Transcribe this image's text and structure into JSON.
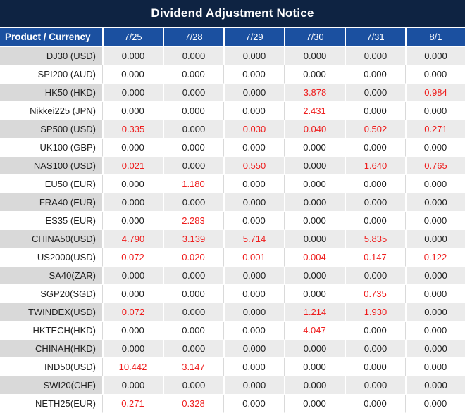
{
  "title": "Dividend Adjustment Notice",
  "table": {
    "product_header": "Product / Currency",
    "date_headers": [
      "7/25",
      "7/28",
      "7/29",
      "7/30",
      "7/31",
      "8/1"
    ],
    "rows": [
      {
        "product": "DJ30 (USD)",
        "values": [
          "0.000",
          "0.000",
          "0.000",
          "0.000",
          "0.000",
          "0.000"
        ]
      },
      {
        "product": "SPI200 (AUD)",
        "values": [
          "0.000",
          "0.000",
          "0.000",
          "0.000",
          "0.000",
          "0.000"
        ]
      },
      {
        "product": "HK50 (HKD)",
        "values": [
          "0.000",
          "0.000",
          "0.000",
          "3.878",
          "0.000",
          "0.984"
        ]
      },
      {
        "product": "Nikkei225 (JPN)",
        "values": [
          "0.000",
          "0.000",
          "0.000",
          "2.431",
          "0.000",
          "0.000"
        ]
      },
      {
        "product": "SP500 (USD)",
        "values": [
          "0.335",
          "0.000",
          "0.030",
          "0.040",
          "0.502",
          "0.271"
        ]
      },
      {
        "product": "UK100 (GBP)",
        "values": [
          "0.000",
          "0.000",
          "0.000",
          "0.000",
          "0.000",
          "0.000"
        ]
      },
      {
        "product": "NAS100 (USD)",
        "values": [
          "0.021",
          "0.000",
          "0.550",
          "0.000",
          "1.640",
          "0.765"
        ]
      },
      {
        "product": "EU50 (EUR)",
        "values": [
          "0.000",
          "1.180",
          "0.000",
          "0.000",
          "0.000",
          "0.000"
        ]
      },
      {
        "product": "FRA40 (EUR)",
        "values": [
          "0.000",
          "0.000",
          "0.000",
          "0.000",
          "0.000",
          "0.000"
        ]
      },
      {
        "product": "ES35 (EUR)",
        "values": [
          "0.000",
          "2.283",
          "0.000",
          "0.000",
          "0.000",
          "0.000"
        ]
      },
      {
        "product": "CHINA50(USD)",
        "values": [
          "4.790",
          "3.139",
          "5.714",
          "0.000",
          "5.835",
          "0.000"
        ]
      },
      {
        "product": "US2000(USD)",
        "values": [
          "0.072",
          "0.020",
          "0.001",
          "0.004",
          "0.147",
          "0.122"
        ]
      },
      {
        "product": "SA40(ZAR)",
        "values": [
          "0.000",
          "0.000",
          "0.000",
          "0.000",
          "0.000",
          "0.000"
        ]
      },
      {
        "product": "SGP20(SGD)",
        "values": [
          "0.000",
          "0.000",
          "0.000",
          "0.000",
          "0.735",
          "0.000"
        ]
      },
      {
        "product": "TWINDEX(USD)",
        "values": [
          "0.072",
          "0.000",
          "0.000",
          "1.214",
          "1.930",
          "0.000"
        ]
      },
      {
        "product": "HKTECH(HKD)",
        "values": [
          "0.000",
          "0.000",
          "0.000",
          "4.047",
          "0.000",
          "0.000"
        ]
      },
      {
        "product": "CHINAH(HKD)",
        "values": [
          "0.000",
          "0.000",
          "0.000",
          "0.000",
          "0.000",
          "0.000"
        ]
      },
      {
        "product": "IND50(USD)",
        "values": [
          "10.442",
          "3.147",
          "0.000",
          "0.000",
          "0.000",
          "0.000"
        ]
      },
      {
        "product": "SWI20(CHF)",
        "values": [
          "0.000",
          "0.000",
          "0.000",
          "0.000",
          "0.000",
          "0.000"
        ]
      },
      {
        "product": "NETH25(EUR)",
        "values": [
          "0.271",
          "0.328",
          "0.000",
          "0.000",
          "0.000",
          "0.000"
        ]
      }
    ]
  },
  "colors": {
    "title_bar_bg": "#0e2342",
    "header_bg": "#1b50a0",
    "gray_row_product_bg": "#d9d9d9",
    "gray_row_value_bg": "#ebebeb",
    "zero_value_color": "#1f1f1f",
    "nonzero_value_color": "#ee1c1c"
  }
}
